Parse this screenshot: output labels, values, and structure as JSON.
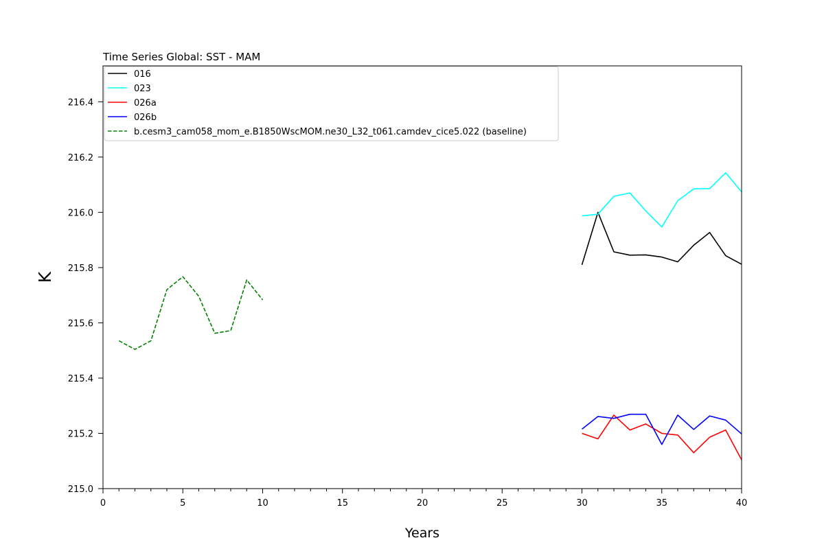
{
  "chart_data": {
    "type": "line",
    "title": "Time Series Global: SST - MAM",
    "xlabel": "Years",
    "ylabel": "K",
    "xlim": [
      0,
      40
    ],
    "ylim": [
      215.0,
      216.53
    ],
    "xticks_major": [
      0,
      5,
      10,
      15,
      20,
      25,
      30,
      35,
      40
    ],
    "xticks_minor_step": 1,
    "yticks": [
      215.0,
      215.2,
      215.4,
      215.6,
      215.8,
      216.0,
      216.2,
      216.4
    ],
    "grid": false,
    "legend_position": "top-left",
    "series": [
      {
        "name": "016",
        "color": "#000000",
        "style": "solid",
        "x": [
          30,
          31,
          32,
          33,
          34,
          35,
          36,
          37,
          38,
          39,
          40
        ],
        "values": [
          215.81,
          216.0,
          215.857,
          215.845,
          215.846,
          215.838,
          215.821,
          215.881,
          215.927,
          215.843,
          215.812
        ]
      },
      {
        "name": "023",
        "color": "#00ffff",
        "style": "solid",
        "x": [
          30,
          31,
          32,
          33,
          34,
          35,
          36,
          37,
          38,
          39,
          40
        ],
        "values": [
          215.987,
          215.993,
          216.058,
          216.07,
          216.005,
          215.947,
          216.042,
          216.085,
          216.086,
          216.143,
          216.074
        ]
      },
      {
        "name": "026a",
        "color": "#ff0000",
        "style": "solid",
        "x": [
          30,
          31,
          32,
          33,
          34,
          35,
          36,
          37,
          38,
          39,
          40
        ],
        "values": [
          215.2,
          215.18,
          215.266,
          215.212,
          215.234,
          215.2,
          215.194,
          215.13,
          215.186,
          215.212,
          215.104
        ]
      },
      {
        "name": "026b",
        "color": "#0000ff",
        "style": "solid",
        "x": [
          30,
          31,
          32,
          33,
          34,
          35,
          36,
          37,
          38,
          39,
          40
        ],
        "values": [
          215.215,
          215.261,
          215.254,
          215.269,
          215.269,
          215.16,
          215.266,
          215.214,
          215.263,
          215.248,
          215.198
        ]
      },
      {
        "name": "b.cesm3_cam058_mom_e.B1850WscMOM.ne30_L32_t061.camdev_cice5.022 (baseline)",
        "color": "#008000",
        "style": "dashed",
        "x": [
          1,
          2,
          3,
          4,
          5,
          6,
          7,
          8,
          9,
          10
        ],
        "values": [
          215.535,
          215.504,
          215.535,
          215.72,
          215.767,
          215.696,
          215.562,
          215.572,
          215.755,
          215.683
        ]
      }
    ]
  }
}
